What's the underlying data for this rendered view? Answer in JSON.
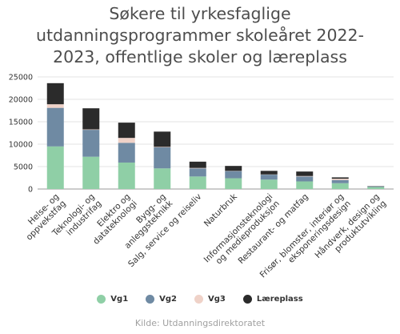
{
  "chart_data": {
    "type": "bar",
    "stacked": true,
    "title_lines": [
      "Søkere til yrkesfaglige",
      "utdanningsprogrammer skoleåret 2022-",
      "2023, offentlige skoler og læreplass"
    ],
    "source": "Kilde: Utdanningsdirektoratet",
    "ylim": [
      0,
      25000
    ],
    "yticks": [
      0,
      5000,
      10000,
      15000,
      20000,
      25000
    ],
    "ytick_labels": [
      "0",
      "5000",
      "10000",
      "15000",
      "20000",
      "25000"
    ],
    "grid": true,
    "legend_position": "bottom",
    "categories": [
      [
        "Helse- og",
        "oppvekstfag"
      ],
      [
        "Teknologi- og",
        "industrifag"
      ],
      [
        "Elektro og",
        "datateknologi"
      ],
      [
        "Bygg- og",
        "anleggsteknikk"
      ],
      [
        "Salg, service og reiseliv"
      ],
      [
        "Naturbruk"
      ],
      [
        "Informasjonsteknologi",
        "og medieproduksjon"
      ],
      [
        "Restaurant- og matfag"
      ],
      [
        "Frisør, blomster, interiør og",
        "eksponeringsdesign"
      ],
      [
        "Håndverk, design og",
        "produktutvikling"
      ]
    ],
    "series": [
      {
        "name": "Vg1",
        "color": "#8fcfa6",
        "values": [
          9500,
          7200,
          5900,
          4600,
          2800,
          2400,
          2100,
          1700,
          1300,
          450
        ]
      },
      {
        "name": "Vg2",
        "color": "#6f8aa3",
        "values": [
          8600,
          6000,
          4400,
          4700,
          1800,
          1600,
          1100,
          1100,
          700,
          150
        ]
      },
      {
        "name": "Vg3",
        "color": "#efd2c8",
        "values": [
          800,
          100,
          1100,
          100,
          100,
          50,
          50,
          100,
          300,
          50
        ]
      },
      {
        "name": "Læreplass",
        "color": "#2b2b2b",
        "values": [
          4700,
          4700,
          3400,
          3400,
          1400,
          1100,
          800,
          1000,
          300,
          50
        ]
      }
    ]
  }
}
